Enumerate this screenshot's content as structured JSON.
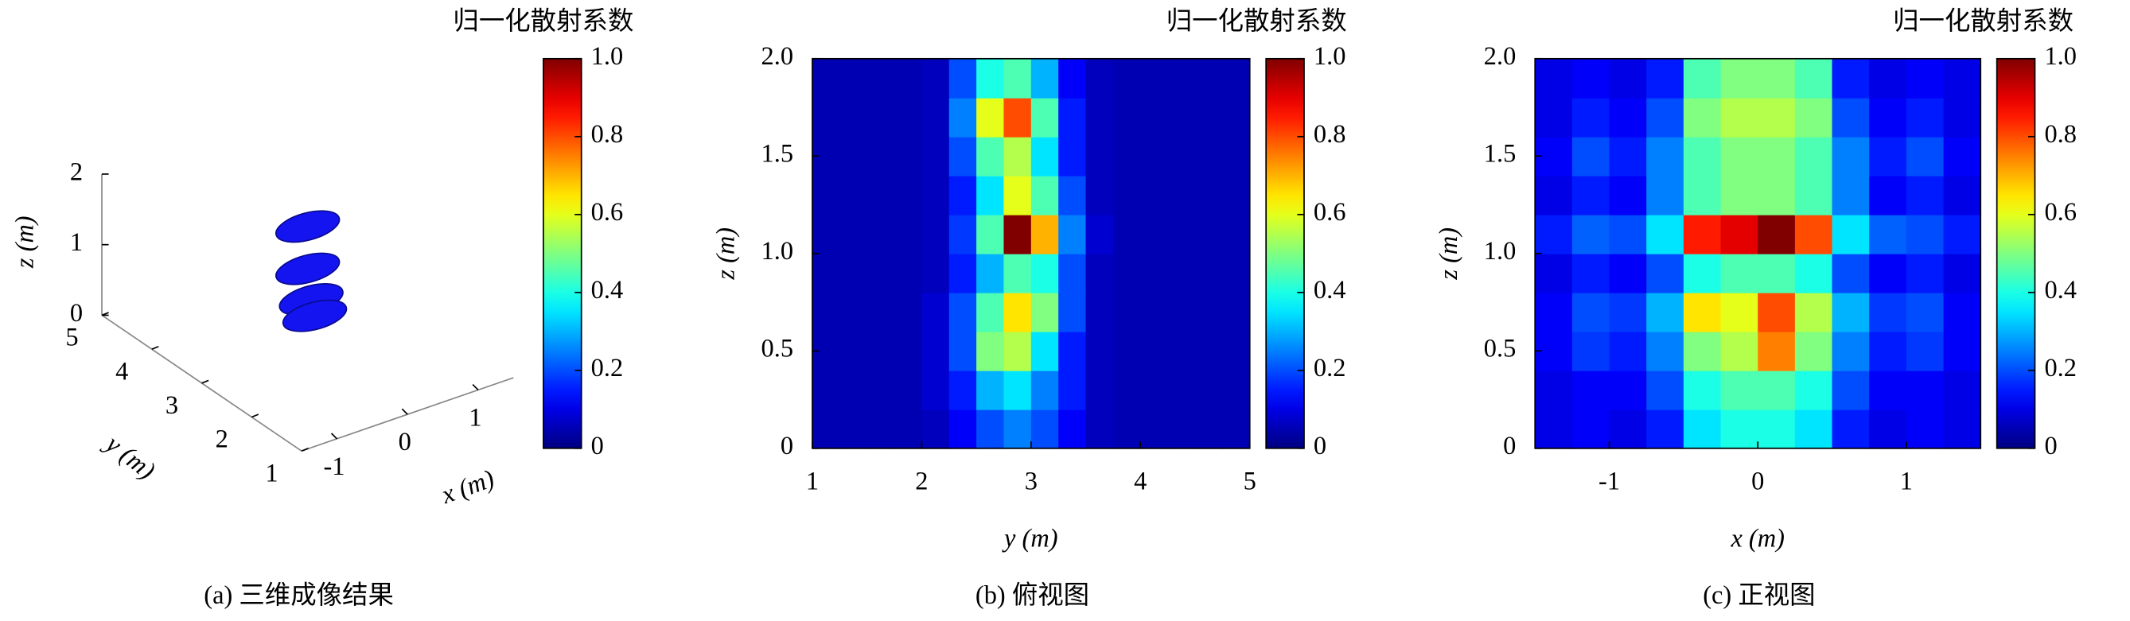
{
  "chart_data": [
    {
      "type": "isosurface",
      "caption": "(a) 三维成像结果",
      "xlabel": "x (m)",
      "ylabel": "y (m)",
      "zlabel": "z (m)",
      "xlim": [
        -1.5,
        1.5
      ],
      "ylim": [
        1,
        5
      ],
      "zlim": [
        0,
        2
      ],
      "xticks": [
        -1,
        0,
        1
      ],
      "yticks": [
        1,
        2,
        3,
        4,
        5
      ],
      "zticks": [
        0,
        1,
        2
      ],
      "x": [
        0,
        0,
        0.05,
        0.1
      ],
      "y": [
        3,
        3,
        3,
        3
      ],
      "z": [
        1.7,
        1.1,
        0.65,
        0.4
      ],
      "color": "#1414f0",
      "colormap": "jet",
      "colorbar": {
        "title": "归一化散射系数",
        "clim": [
          0,
          1
        ],
        "ticks": [
          0,
          0.2,
          0.4,
          0.6,
          0.8,
          {
            "value": 1,
            "label": "1.0"
          }
        ]
      }
    },
    {
      "type": "heatmap",
      "caption": "(b) 俯视图",
      "xlabel": "y (m)",
      "ylabel": "z (m)",
      "xlim": [
        1,
        5
      ],
      "ylim": [
        0,
        2
      ],
      "xticks": [
        1,
        2,
        3,
        4,
        5
      ],
      "yticks": [
        0,
        0.5,
        {
          "value": 1,
          "label": "1.0"
        },
        1.5,
        {
          "value": 2,
          "label": "2.0"
        }
      ],
      "x": [
        1.125,
        1.375,
        1.625,
        1.875,
        2.125,
        2.375,
        2.625,
        2.875,
        3.125,
        3.375,
        3.625,
        3.875,
        4.125,
        4.375,
        4.625,
        4.875
      ],
      "y": [
        0.1,
        0.3,
        0.5,
        0.7,
        0.9,
        1.1,
        1.3,
        1.5,
        1.7,
        1.9
      ],
      "z": [
        [
          0.05,
          0.05,
          0.05,
          0.05,
          0.06,
          0.12,
          0.2,
          0.25,
          0.2,
          0.12,
          0.06,
          0.05,
          0.05,
          0.05,
          0.05,
          0.05
        ],
        [
          0.05,
          0.05,
          0.05,
          0.05,
          0.08,
          0.15,
          0.3,
          0.35,
          0.25,
          0.15,
          0.06,
          0.05,
          0.05,
          0.05,
          0.05,
          0.05
        ],
        [
          0.05,
          0.05,
          0.05,
          0.05,
          0.08,
          0.2,
          0.5,
          0.55,
          0.35,
          0.15,
          0.06,
          0.05,
          0.05,
          0.05,
          0.05,
          0.05
        ],
        [
          0.05,
          0.05,
          0.05,
          0.05,
          0.08,
          0.2,
          0.45,
          0.65,
          0.5,
          0.2,
          0.06,
          0.05,
          0.05,
          0.05,
          0.05,
          0.05
        ],
        [
          0.05,
          0.05,
          0.05,
          0.05,
          0.06,
          0.15,
          0.3,
          0.45,
          0.4,
          0.2,
          0.06,
          0.05,
          0.05,
          0.05,
          0.05,
          0.05
        ],
        [
          0.05,
          0.05,
          0.05,
          0.05,
          0.06,
          0.18,
          0.45,
          1.0,
          0.7,
          0.25,
          0.08,
          0.05,
          0.05,
          0.05,
          0.05,
          0.05
        ],
        [
          0.05,
          0.05,
          0.05,
          0.05,
          0.06,
          0.15,
          0.35,
          0.6,
          0.45,
          0.2,
          0.06,
          0.05,
          0.05,
          0.05,
          0.05,
          0.05
        ],
        [
          0.05,
          0.05,
          0.05,
          0.05,
          0.06,
          0.2,
          0.45,
          0.55,
          0.35,
          0.15,
          0.06,
          0.05,
          0.05,
          0.05,
          0.05,
          0.05
        ],
        [
          0.05,
          0.05,
          0.05,
          0.05,
          0.06,
          0.25,
          0.6,
          0.8,
          0.45,
          0.15,
          0.06,
          0.05,
          0.05,
          0.05,
          0.05,
          0.05
        ],
        [
          0.05,
          0.05,
          0.05,
          0.05,
          0.06,
          0.2,
          0.4,
          0.45,
          0.3,
          0.12,
          0.06,
          0.05,
          0.05,
          0.05,
          0.05,
          0.05
        ]
      ],
      "colormap": "jet",
      "colorbar": {
        "title": "归一化散射系数",
        "clim": [
          0,
          1
        ],
        "ticks": [
          0,
          0.2,
          0.4,
          0.6,
          0.8,
          {
            "value": 1,
            "label": "1.0"
          }
        ]
      }
    },
    {
      "type": "heatmap",
      "caption": "(c) 正视图",
      "xlabel": "x (m)",
      "ylabel": "z (m)",
      "xlim": [
        -1.5,
        1.5
      ],
      "ylim": [
        0,
        2
      ],
      "xticks": [
        -1,
        0,
        1
      ],
      "yticks": [
        0,
        0.5,
        {
          "value": 1,
          "label": "1.0"
        },
        1.5,
        {
          "value": 2,
          "label": "2.0"
        }
      ],
      "x": [
        -1.375,
        -1.125,
        -0.875,
        -0.625,
        -0.375,
        -0.125,
        0.125,
        0.375,
        0.625,
        0.875,
        1.125,
        1.375
      ],
      "y": [
        0.1,
        0.3,
        0.5,
        0.7,
        0.9,
        1.1,
        1.3,
        1.5,
        1.7,
        1.9
      ],
      "z": [
        [
          0.1,
          0.12,
          0.1,
          0.15,
          0.35,
          0.4,
          0.4,
          0.35,
          0.15,
          0.1,
          0.12,
          0.1
        ],
        [
          0.1,
          0.12,
          0.12,
          0.2,
          0.4,
          0.45,
          0.45,
          0.4,
          0.2,
          0.12,
          0.12,
          0.1
        ],
        [
          0.12,
          0.18,
          0.15,
          0.25,
          0.5,
          0.55,
          0.75,
          0.5,
          0.25,
          0.15,
          0.18,
          0.12
        ],
        [
          0.12,
          0.2,
          0.18,
          0.3,
          0.65,
          0.6,
          0.8,
          0.55,
          0.3,
          0.18,
          0.2,
          0.12
        ],
        [
          0.1,
          0.15,
          0.12,
          0.2,
          0.4,
          0.45,
          0.45,
          0.4,
          0.2,
          0.12,
          0.15,
          0.1
        ],
        [
          0.15,
          0.22,
          0.2,
          0.35,
          0.85,
          0.9,
          1.0,
          0.8,
          0.35,
          0.22,
          0.2,
          0.15
        ],
        [
          0.1,
          0.15,
          0.12,
          0.25,
          0.45,
          0.5,
          0.5,
          0.45,
          0.25,
          0.12,
          0.15,
          0.1
        ],
        [
          0.12,
          0.2,
          0.15,
          0.25,
          0.45,
          0.5,
          0.5,
          0.45,
          0.25,
          0.15,
          0.2,
          0.12
        ],
        [
          0.1,
          0.15,
          0.12,
          0.2,
          0.5,
          0.55,
          0.55,
          0.5,
          0.2,
          0.12,
          0.15,
          0.1
        ],
        [
          0.1,
          0.12,
          0.1,
          0.15,
          0.45,
          0.5,
          0.5,
          0.45,
          0.15,
          0.1,
          0.12,
          0.1
        ]
      ],
      "colormap": "jet",
      "colorbar": {
        "title": "归一化散射系数",
        "clim": [
          0,
          1
        ],
        "ticks": [
          0,
          0.2,
          0.4,
          0.6,
          0.8,
          {
            "value": 1,
            "label": "1.0"
          }
        ]
      }
    }
  ]
}
